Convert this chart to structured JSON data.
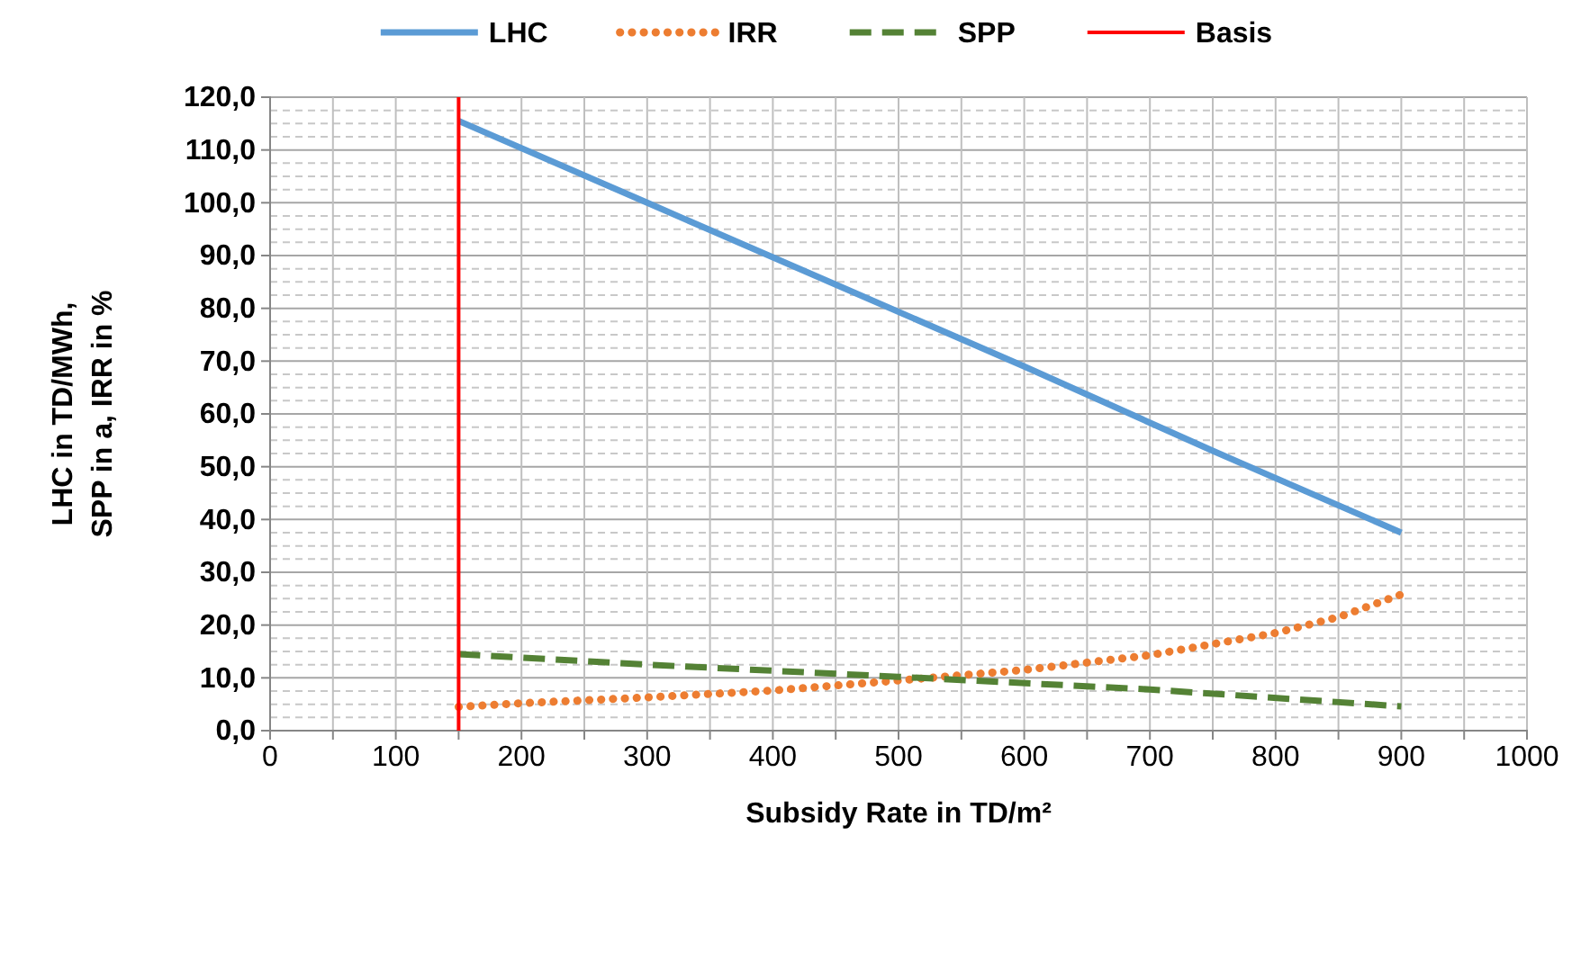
{
  "chart_data": {
    "type": "line",
    "xlabel": "Subsidy Rate in TD/m²",
    "ylabel": "LHC  in TD/MWh,\nSPP  in a,  IRR in %",
    "xlim": [
      0,
      1000
    ],
    "xticks": [
      0,
      {
        "value": 50,
        "label": null
      },
      100,
      {
        "value": 150,
        "label": null
      },
      200,
      {
        "value": 250,
        "label": null
      },
      300,
      {
        "value": 350,
        "label": null
      },
      400,
      {
        "value": 450,
        "label": null
      },
      500,
      {
        "value": 550,
        "label": null
      },
      600,
      {
        "value": 650,
        "label": null
      },
      700,
      {
        "value": 750,
        "label": null
      },
      800,
      {
        "value": 850,
        "label": null
      },
      900,
      {
        "value": 950,
        "label": null
      },
      1000
    ],
    "ylim": [
      0,
      120
    ],
    "yticks": [
      {
        "value": 0,
        "label": "0,0"
      },
      {
        "value": 10,
        "label": "10,0"
      },
      {
        "value": 20,
        "label": "20,0"
      },
      {
        "value": 30,
        "label": "30,0"
      },
      {
        "value": 40,
        "label": "40,0"
      },
      {
        "value": 50,
        "label": "50,0"
      },
      {
        "value": 60,
        "label": "60,0"
      },
      {
        "value": 70,
        "label": "70,0"
      },
      {
        "value": 80,
        "label": "80,0"
      },
      {
        "value": 90,
        "label": "90,0"
      },
      {
        "value": 100,
        "label": "100,0"
      },
      {
        "value": 110,
        "label": "110,0"
      },
      {
        "value": 120,
        "label": "120,0"
      }
    ],
    "grid": true,
    "legend": "top",
    "marker": "none",
    "series": [
      {
        "name": "LHC",
        "color": "#5b9bd5",
        "line_style": "solid",
        "x": [
          150,
          300,
          450,
          600,
          750,
          900
        ],
        "values": [
          115.5,
          100,
          84.5,
          69,
          53,
          37.5
        ]
      },
      {
        "name": "IRR",
        "color": "#ed7d31",
        "line_style": "dotted",
        "x": [
          150,
          200,
          300,
          400,
          500,
          600,
          700,
          800,
          850,
          900
        ],
        "values": [
          4.5,
          5.2,
          6.3,
          7.6,
          9.5,
          11.5,
          14.3,
          18.5,
          21.5,
          25.8
        ]
      },
      {
        "name": "SPP",
        "color": "#548235",
        "line_style": "dashed",
        "x": [
          150,
          300,
          500,
          700,
          900
        ],
        "values": [
          14.5,
          12.5,
          10.2,
          7.8,
          4.6
        ]
      }
    ],
    "ref_lines": [
      {
        "axis": "x",
        "value": 150,
        "label": "Basis",
        "color": "#ff0000",
        "line_style": "solid"
      }
    ]
  }
}
